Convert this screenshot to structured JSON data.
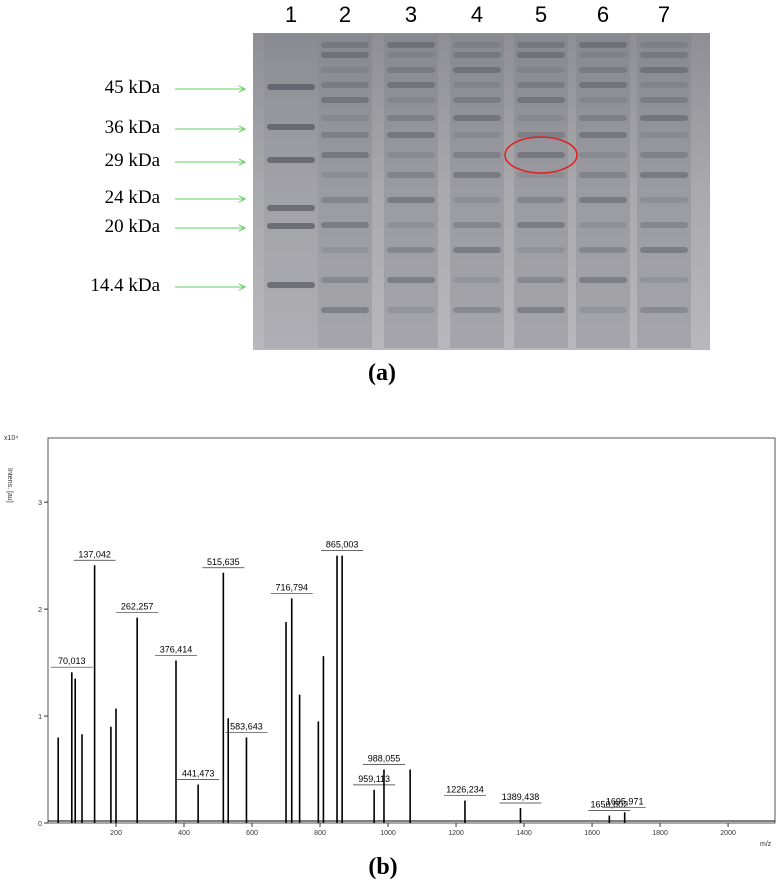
{
  "figure": {
    "gel": {
      "lanes": [
        "1",
        "2",
        "3",
        "4",
        "5",
        "6",
        "7"
      ],
      "markers": [
        "45 kDa",
        "36 kDa",
        "29 kDa",
        "24 kDa",
        "20 kDa",
        "14.4 kDa"
      ],
      "caption": "(a)"
    },
    "spectrum_caption": "(b)"
  },
  "chart_data": {
    "type": "spectrum",
    "y_label": "Intens. [au]",
    "y_scale_label": "x10⁴",
    "x_label": "m/z",
    "xlim": [
      0,
      2138
    ],
    "ylim": [
      0,
      3.6
    ],
    "xticks": [
      200,
      400,
      600,
      800,
      1000,
      1200,
      1400,
      1600,
      1800,
      2000
    ],
    "yticks": [
      0,
      1,
      2,
      3
    ],
    "color": "#000000",
    "x": [
      30,
      70.013,
      80,
      100,
      137.042,
      185,
      200,
      262.257,
      376.414,
      441.473,
      515.635,
      530,
      583.643,
      700,
      716.794,
      740,
      795,
      810,
      850,
      865.003,
      959.113,
      988.055,
      1065,
      1226.234,
      1389.438,
      1650.802,
      1695.971
    ],
    "values": [
      0.8,
      1.41,
      1.35,
      0.83,
      2.41,
      0.9,
      1.07,
      1.92,
      1.52,
      0.36,
      2.34,
      0.98,
      0.8,
      1.88,
      2.1,
      1.2,
      0.95,
      1.56,
      2.5,
      2.5,
      0.31,
      0.5,
      0.5,
      0.21,
      0.14,
      0.07,
      0.1
    ],
    "peak_labels": [
      null,
      "70,013",
      null,
      null,
      "137,042",
      null,
      null,
      "262,257",
      "376,414",
      "441,473",
      "515,635",
      null,
      "583,643",
      null,
      "716,794",
      null,
      null,
      null,
      null,
      "865,003",
      "959,113",
      "988,055",
      null,
      "1226,234",
      "1389,438",
      "1650,802",
      "1695,971"
    ]
  }
}
